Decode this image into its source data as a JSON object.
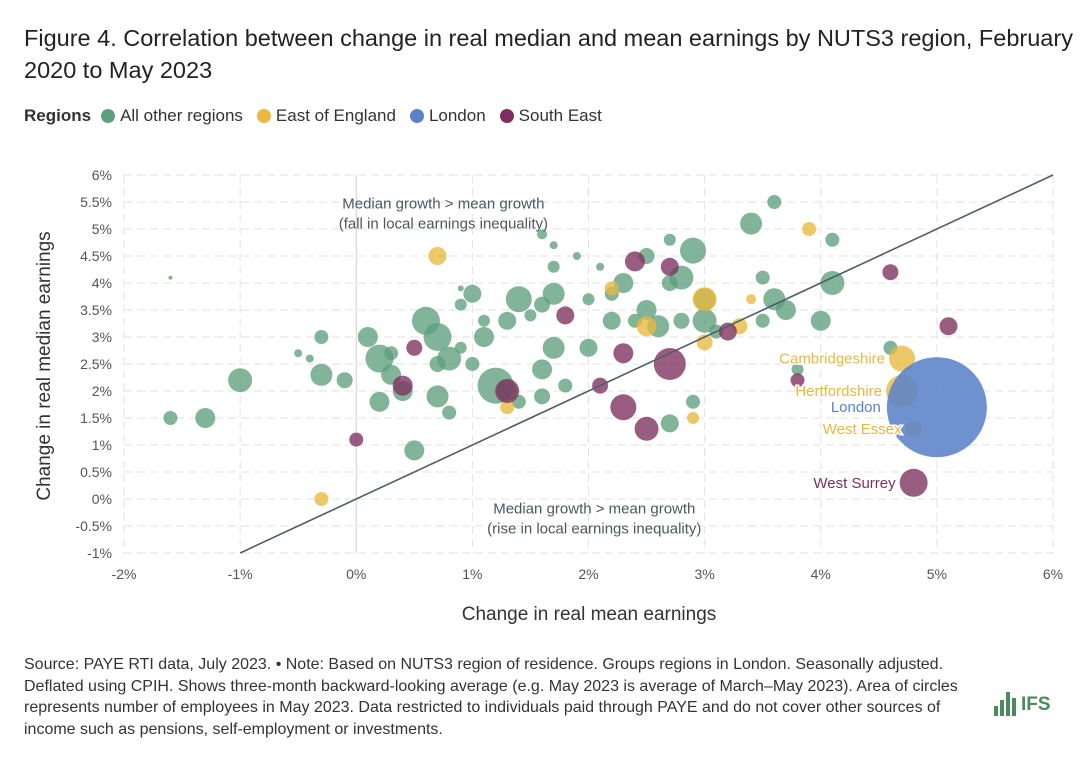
{
  "title": "Figure 4. Correlation between change in real median and mean earnings by NUTS3 region, February 2020 to May 2023",
  "legend": {
    "title": "Regions",
    "items": [
      {
        "label": "All other regions",
        "color": "#5d9f7b"
      },
      {
        "label": "East of England",
        "color": "#e8b83f"
      },
      {
        "label": "London",
        "color": "#5b82c8"
      },
      {
        "label": "South East",
        "color": "#7e2f5f"
      }
    ]
  },
  "chart_data": {
    "type": "scatter",
    "title": "Correlation between change in real median and mean earnings by NUTS3 region",
    "xlabel": "Change in real mean earnings",
    "ylabel": "Change in real median earnings",
    "xlim": [
      -2,
      6
    ],
    "ylim": [
      -1,
      6
    ],
    "xticks": [
      "-2%",
      "-1%",
      "0%",
      "1%",
      "2%",
      "3%",
      "4%",
      "5%",
      "6%"
    ],
    "yticks": [
      "-1%",
      "-0.5%",
      "0%",
      "0.5%",
      "1%",
      "1.5%",
      "2%",
      "2.5%",
      "3%",
      "3.5%",
      "4%",
      "4.5%",
      "5%",
      "5.5%",
      "6%"
    ],
    "xtick_values": [
      -2,
      -1,
      0,
      1,
      2,
      3,
      4,
      5,
      6
    ],
    "ytick_values": [
      -1,
      -0.5,
      0,
      0.5,
      1,
      1.5,
      2,
      2.5,
      3,
      3.5,
      4,
      4.5,
      5,
      5.5,
      6
    ],
    "grid": true,
    "reference_line": "y = x",
    "annotations": [
      {
        "text": "Median growth > mean growth",
        "text2": "(fall in local earnings inequality)",
        "x": 0.75,
        "y": 5.75
      },
      {
        "text": "Median growth > mean growth",
        "text2": "(rise in local earnings inequality)",
        "x": 2.05,
        "y": 0.1
      }
    ],
    "size_note": "bubble area ∝ employees (relative units)",
    "series": [
      {
        "name": "All other regions",
        "color": "#5d9f7b",
        "points": [
          [
            -1.6,
            1.5,
            7
          ],
          [
            -1.3,
            1.5,
            10
          ],
          [
            -1.0,
            2.2,
            12
          ],
          [
            -1.6,
            4.1,
            2
          ],
          [
            -0.5,
            2.7,
            4
          ],
          [
            -0.4,
            2.6,
            4
          ],
          [
            -0.3,
            3.0,
            7
          ],
          [
            -0.3,
            2.3,
            11
          ],
          [
            -0.1,
            2.2,
            8
          ],
          [
            0.1,
            3.0,
            10
          ],
          [
            0.2,
            2.6,
            14
          ],
          [
            0.2,
            1.8,
            10
          ],
          [
            0.3,
            2.3,
            10
          ],
          [
            0.3,
            2.7,
            7
          ],
          [
            0.4,
            2.0,
            10
          ],
          [
            0.5,
            0.9,
            10
          ],
          [
            0.6,
            3.3,
            14
          ],
          [
            0.7,
            3.0,
            14
          ],
          [
            0.7,
            1.9,
            11
          ],
          [
            0.7,
            2.5,
            8
          ],
          [
            0.8,
            2.6,
            12
          ],
          [
            0.8,
            1.6,
            7
          ],
          [
            0.9,
            2.8,
            6
          ],
          [
            0.9,
            3.6,
            6
          ],
          [
            1.0,
            3.8,
            9
          ],
          [
            1.0,
            2.5,
            7
          ],
          [
            0.9,
            3.9,
            3
          ],
          [
            1.1,
            3.3,
            6
          ],
          [
            1.1,
            3.0,
            10
          ],
          [
            1.2,
            2.1,
            18
          ],
          [
            1.3,
            2.0,
            10
          ],
          [
            1.4,
            1.8,
            7
          ],
          [
            1.3,
            3.3,
            9
          ],
          [
            1.4,
            3.7,
            13
          ],
          [
            1.5,
            3.4,
            6
          ],
          [
            1.6,
            3.6,
            8
          ],
          [
            1.6,
            4.9,
            5
          ],
          [
            1.7,
            4.7,
            4
          ],
          [
            1.7,
            4.3,
            6
          ],
          [
            1.7,
            3.8,
            11
          ],
          [
            1.7,
            2.8,
            11
          ],
          [
            1.6,
            2.4,
            10
          ],
          [
            1.6,
            1.9,
            8
          ],
          [
            1.8,
            2.1,
            7
          ],
          [
            1.9,
            4.5,
            4
          ],
          [
            2.0,
            3.7,
            6
          ],
          [
            2.0,
            2.8,
            9
          ],
          [
            2.1,
            4.3,
            4
          ],
          [
            2.2,
            3.8,
            7
          ],
          [
            2.2,
            3.3,
            9
          ],
          [
            2.3,
            4.0,
            10
          ],
          [
            2.4,
            3.3,
            7
          ],
          [
            2.5,
            4.5,
            8
          ],
          [
            2.5,
            3.5,
            10
          ],
          [
            2.6,
            3.2,
            11
          ],
          [
            2.7,
            4.0,
            8
          ],
          [
            2.7,
            4.8,
            6
          ],
          [
            2.8,
            4.1,
            12
          ],
          [
            2.9,
            4.6,
            13
          ],
          [
            2.8,
            3.3,
            8
          ],
          [
            2.9,
            1.8,
            7
          ],
          [
            2.7,
            1.4,
            9
          ],
          [
            3.0,
            3.7,
            11
          ],
          [
            3.0,
            3.3,
            12
          ],
          [
            3.1,
            3.1,
            7
          ],
          [
            3.4,
            5.1,
            11
          ],
          [
            3.6,
            5.5,
            7
          ],
          [
            4.1,
            4.8,
            7
          ],
          [
            3.5,
            4.1,
            7
          ],
          [
            3.6,
            3.7,
            11
          ],
          [
            4.0,
            3.3,
            10
          ],
          [
            4.1,
            4.0,
            12
          ],
          [
            3.7,
            3.5,
            10
          ],
          [
            3.5,
            3.3,
            7
          ],
          [
            3.8,
            2.4,
            6
          ],
          [
            4.6,
            2.8,
            7
          ]
        ]
      },
      {
        "name": "East of England",
        "color": "#e8b83f",
        "points": [
          [
            0.7,
            4.5,
            9
          ],
          [
            -0.3,
            0.0,
            7
          ],
          [
            1.3,
            1.7,
            7
          ],
          [
            2.2,
            3.9,
            7
          ],
          [
            2.5,
            3.2,
            10
          ],
          [
            3.0,
            3.7,
            12
          ],
          [
            3.0,
            2.9,
            8
          ],
          [
            3.3,
            3.2,
            8
          ],
          [
            3.4,
            3.7,
            5
          ],
          [
            2.9,
            1.5,
            6
          ],
          [
            3.9,
            5.0,
            7
          ],
          [
            4.7,
            2.6,
            13,
            "Cambridgeshire"
          ],
          [
            4.7,
            2.0,
            16,
            "Hertfordshire"
          ],
          [
            4.8,
            1.3,
            8,
            "West Essex"
          ]
        ]
      },
      {
        "name": "London",
        "color": "#5b82c8",
        "points": [
          [
            5.0,
            1.7,
            50,
            "London"
          ]
        ]
      },
      {
        "name": "South East",
        "color": "#7e2f5f",
        "points": [
          [
            0.0,
            1.1,
            7
          ],
          [
            0.4,
            2.1,
            10
          ],
          [
            0.5,
            2.8,
            8
          ],
          [
            1.3,
            2.0,
            12
          ],
          [
            1.8,
            3.4,
            9
          ],
          [
            2.1,
            2.1,
            8
          ],
          [
            2.3,
            1.7,
            13
          ],
          [
            2.3,
            2.7,
            10
          ],
          [
            2.5,
            1.3,
            12
          ],
          [
            2.4,
            4.4,
            10
          ],
          [
            2.7,
            4.3,
            9
          ],
          [
            2.7,
            2.5,
            16
          ],
          [
            3.2,
            3.1,
            9
          ],
          [
            4.6,
            4.2,
            8
          ],
          [
            5.1,
            3.2,
            9
          ],
          [
            3.8,
            2.2,
            7
          ],
          [
            4.8,
            0.3,
            14,
            "West Surrey"
          ]
        ]
      }
    ]
  },
  "footer": {
    "text": "Source: PAYE RTI data, July 2023. • Note: Based on NUTS3 region of residence. Groups regions in London. Seasonally adjusted. Deflated using CPIH. Shows three-month backward-looking average (e.g. May 2023 is average of March–May 2023). Area of circles represents number of employees in May 2023. Data restricted to individuals paid through PAYE and do not cover other sources of income such as pensions, self-employment or investments."
  },
  "logo": {
    "text": "IFS"
  }
}
